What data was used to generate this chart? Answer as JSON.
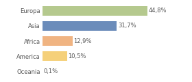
{
  "categories": [
    "Europa",
    "Asia",
    "Africa",
    "America",
    "Oceania"
  ],
  "values": [
    44.8,
    31.7,
    12.9,
    10.5,
    0.1
  ],
  "labels": [
    "44,8%",
    "31,7%",
    "12,9%",
    "10,5%",
    "0,1%"
  ],
  "bar_colors": [
    "#b5c98e",
    "#6b8cba",
    "#f0b482",
    "#f5d07a",
    "#e0e0e0"
  ],
  "background_color": "#ffffff",
  "label_fontsize": 6.0,
  "tick_fontsize": 6.0,
  "xlim": 62
}
